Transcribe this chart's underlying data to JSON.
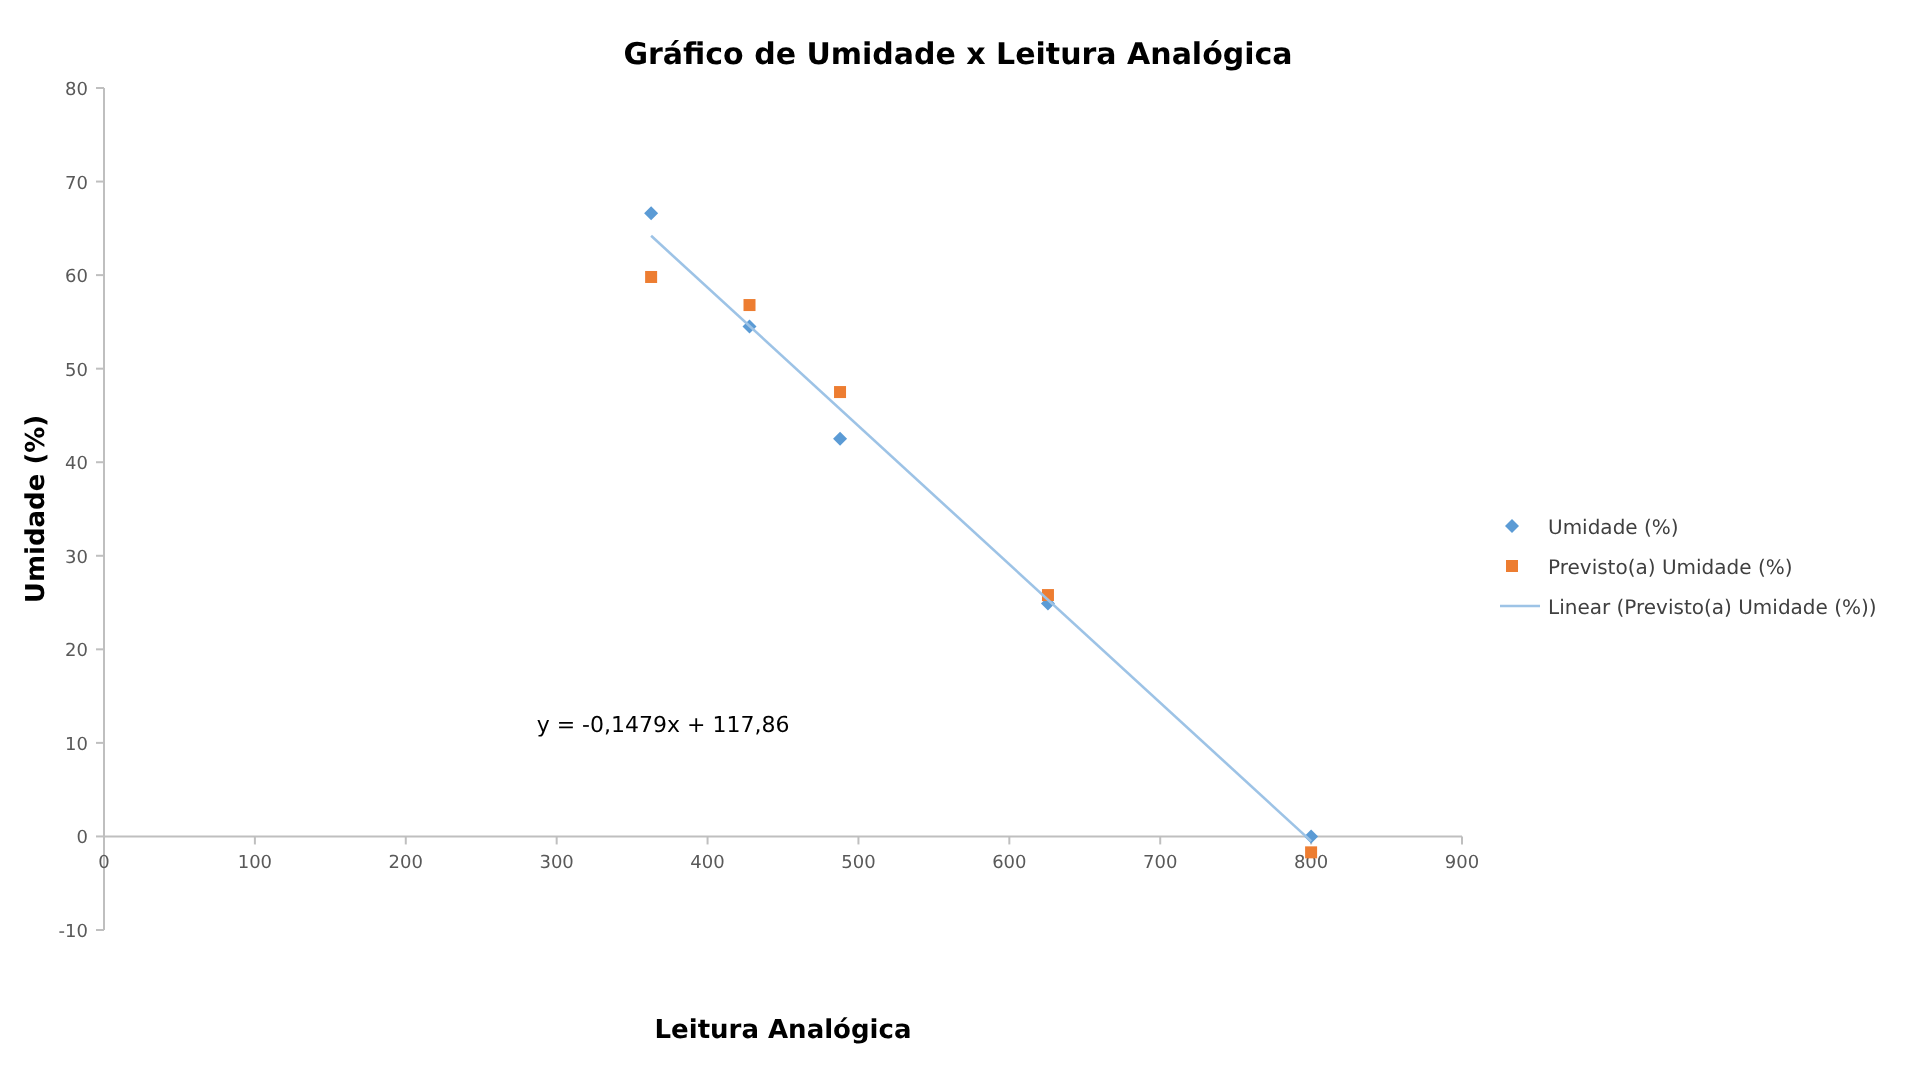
{
  "chart_data": {
    "type": "scatter",
    "title": "Gráfico de Umidade x Leitura Analógica",
    "xlabel": "Leitura Analógica",
    "ylabel": "Umidade (%)",
    "xlim": [
      0,
      900
    ],
    "xticks": [
      0,
      100,
      200,
      300,
      400,
      500,
      600,
      700,
      800,
      900
    ],
    "ylim": [
      -10,
      80
    ],
    "yticks": [
      -10,
      0,
      10,
      20,
      30,
      40,
      50,
      60,
      70,
      80
    ],
    "grid": false,
    "legend": "right",
    "annotations": [
      "y = -0,1479x + 117,86"
    ],
    "series": [
      {
        "name": "Umidade (%)",
        "color": "#5b9bd5",
        "marker": "diamond",
        "x": [
          362.6,
          427.8,
          487.8,
          625.6,
          800
        ],
        "values": [
          66.6,
          54.5,
          42.5,
          24.9,
          0
        ]
      },
      {
        "name": "Previsto(a) Umidade (%)",
        "color": "#ed7d31",
        "marker": "square",
        "x": [
          362.6,
          427.8,
          487.8,
          625.6,
          800
        ],
        "values": [
          59.8,
          56.8,
          47.5,
          25.8,
          -1.7
        ]
      },
      {
        "name": "Linear (Previsto(a) Umidade (%))",
        "type": "line",
        "color": "#9dc3e6",
        "line_style": "solid",
        "x": [
          362.6,
          800
        ],
        "values": [
          64.2,
          -0.5
        ]
      }
    ]
  }
}
